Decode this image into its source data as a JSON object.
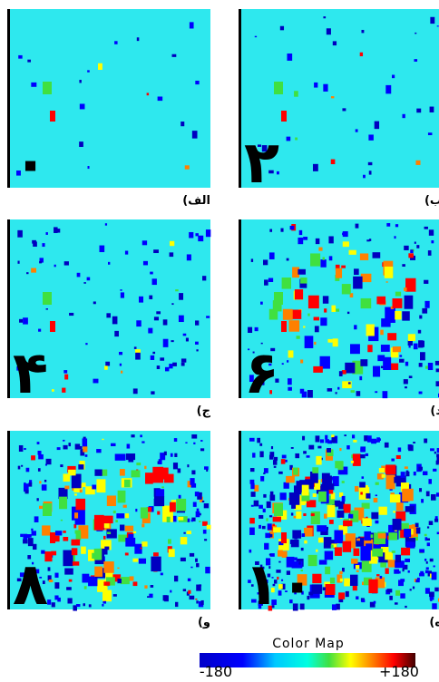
{
  "panels": [
    {
      "numeral": "۰",
      "label": "(الف"
    },
    {
      "numeral": "۲",
      "label": "(ب"
    },
    {
      "numeral": "۴",
      "label": "(ج"
    },
    {
      "numeral": "۶",
      "label": "(د"
    },
    {
      "numeral": "۸",
      "label": "(و"
    },
    {
      "numeral": "۱۰",
      "label": "(ه"
    }
  ],
  "color_map": {
    "title": "Color Map",
    "min_label": "-180",
    "max_label": "+180"
  }
}
